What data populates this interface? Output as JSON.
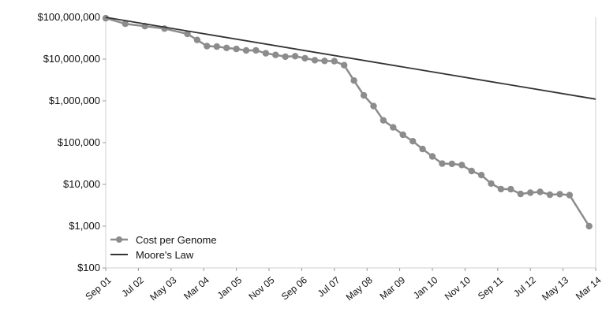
{
  "chart_data": {
    "type": "line",
    "yscale": "log",
    "ylim": [
      100,
      100000000
    ],
    "ytick_labels": [
      "$100,000,000",
      "$10,000,000",
      "$1,000,000",
      "$100,000",
      "$10,000",
      "$1,000",
      "$100"
    ],
    "ytick_values": [
      100000000,
      10000000,
      1000000,
      100000,
      10000,
      1000,
      100
    ],
    "xtick_labels": [
      "Sep 01",
      "Jul 02",
      "May 03",
      "Mar 04",
      "Jan 05",
      "Nov 05",
      "Sep 06",
      "Jul 07",
      "May 08",
      "Mar 09",
      "Jan 10",
      "Nov 10",
      "Sep 11",
      "Jul 12",
      "May 13",
      "Mar 14"
    ],
    "grid": false,
    "legend_position": "bottom-left",
    "series": [
      {
        "name": "Cost per Genome",
        "color": "#8c8c8c",
        "marker": "circle",
        "x": [
          "Sep 01",
          "Mar 02",
          "Sep 02",
          "Mar 03",
          "Oct 03",
          "Jan 04",
          "Apr 04",
          "Jul 04",
          "Oct 04",
          "Jan 05",
          "Apr 05",
          "Jul 05",
          "Oct 05",
          "Jan 06",
          "Apr 06",
          "Jul 06",
          "Oct 06",
          "Jan 07",
          "Apr 07",
          "Jul 07",
          "Oct 07",
          "Jan 08",
          "Apr 08",
          "Jul 08",
          "Oct 08",
          "Jan 09",
          "Apr 09",
          "Jul 09",
          "Oct 09",
          "Jan 10",
          "Apr 10",
          "Jul 10",
          "Oct 10",
          "Jan 11",
          "Apr 11",
          "Jul 11",
          "Oct 11",
          "Jan 12",
          "Apr 12",
          "Jul 12",
          "Oct 12",
          "Jan 13",
          "Apr 13",
          "Jul 13",
          "Jan 14"
        ],
        "values": [
          95263072,
          70175437,
          61448422,
          53751684,
          40157554,
          28780376,
          20442576,
          19934346,
          18519312,
          17534292,
          16159326,
          16180122,
          13801124,
          12585059,
          11455340,
          11732284,
          10474572,
          9408739,
          9047003,
          8927342,
          7147571,
          3063820,
          1352982,
          752080,
          342502,
          232735,
          154714,
          108065,
          70333,
          46774,
          31512,
          31125,
          29092,
          20963,
          16712,
          10497,
          7743,
          7666,
          5901,
          6324,
          6618,
          5671,
          5826,
          5550,
          1000
        ]
      },
      {
        "name": "Moore's Law",
        "color": "#333333",
        "marker": "none",
        "x": [
          "Sep 01",
          "Mar 14"
        ],
        "values": [
          100000000,
          1100000
        ]
      }
    ]
  }
}
